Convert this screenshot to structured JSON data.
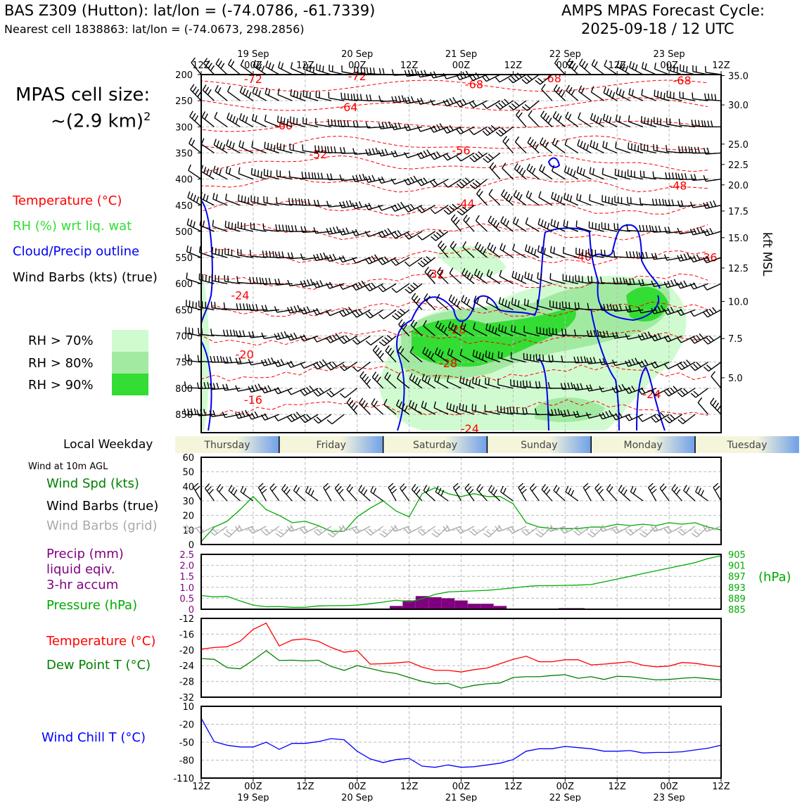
{
  "header": {
    "station": "BAS Z309 (Hutton): lat/lon = (-74.0786, -61.7339)",
    "nearest": "Nearest cell 1838863: lat/lon = (-74.0673, 298.2856)",
    "cycle_label": "AMPS MPAS Forecast Cycle:",
    "cycle_value": "2025-09-18 / 12 UTC"
  },
  "cell_size": {
    "label": "MPAS cell size:",
    "value": "~(2.9 km)",
    "exp": "2"
  },
  "legend": {
    "temperature": "Temperature (°C)",
    "rh": "RH (%) wrt liq. wat",
    "cloud": "Cloud/Precip outline",
    "barbs": "Wind Barbs (kts) (true)",
    "rh70": "RH > 70%",
    "rh80": "RH > 80%",
    "rh90": "RH > 90%"
  },
  "colors": {
    "temp": "#ff0000",
    "rh": "#33dd33",
    "cloud": "#0000ee",
    "precip": "#7f007f",
    "pressure": "#00aa00",
    "dew": "#008000",
    "chill": "#0000ff",
    "rh70": "#d0fbd0",
    "rh80": "#a2eaa2",
    "rh90": "#33dd33"
  },
  "panel_labels": {
    "local_weekday": "Local Weekday",
    "wind10m": "Wind at 10m AGL",
    "wind_spd": "Wind Spd (kts)",
    "wind_true": "Wind Barbs (true)",
    "wind_grid": "Wind Barbs (grid)",
    "precip1": "Precip (mm)",
    "precip2": "liquid eqiv.",
    "precip3": "3-hr accum",
    "pressure": "Pressure (hPa)",
    "hpa": "(hPa)",
    "temperature": "Temperature (°C)",
    "dewpoint": "Dew Point T (°C)",
    "windchill": "Wind Chill T (°C)",
    "kft": "kft MSL"
  },
  "weekdays": [
    "Thursday",
    "Friday",
    "Saturday",
    "Sunday",
    "Monday",
    "Tuesday"
  ],
  "chart_data": [
    {
      "type": "time-height",
      "title": "Upper-air forecast",
      "x_hours": [
        0,
        120
      ],
      "x_top_ticks": [
        "12Z",
        "00Z",
        "12Z",
        "00Z",
        "12Z",
        "00Z",
        "12Z",
        "00Z",
        "12Z",
        "00Z",
        "12Z"
      ],
      "x_dates": [
        "19 Sep",
        "20 Sep",
        "21 Sep",
        "22 Sep",
        "23 Sep"
      ],
      "y_pressure_ticks": [
        "200",
        "250",
        "300",
        "350",
        "400",
        "450",
        "500",
        "550",
        "600",
        "650",
        "700",
        "750",
        "800",
        "850"
      ],
      "kft_ticks": [
        "35.0",
        "30.0",
        "25.0",
        "22.5",
        "20.0",
        "17.5",
        "15.0",
        "12.5",
        "10.0",
        "7.5",
        "5.0"
      ],
      "kft_pressures": [
        202,
        258,
        333,
        372,
        411,
        461,
        512,
        570,
        634,
        705,
        780
      ],
      "temperature_labels": [
        {
          "text": "-72",
          "h": 12,
          "p": 208
        },
        {
          "text": "-72",
          "h": 36,
          "p": 203
        },
        {
          "text": "-68",
          "h": 63,
          "p": 218
        },
        {
          "text": "-68",
          "h": 81,
          "p": 207
        },
        {
          "text": "-68",
          "h": 111,
          "p": 211
        },
        {
          "text": "-64",
          "h": 34,
          "p": 262
        },
        {
          "text": "-60",
          "h": 19,
          "p": 297
        },
        {
          "text": "-52",
          "h": 27,
          "p": 352
        },
        {
          "text": "-56",
          "h": 60,
          "p": 345
        },
        {
          "text": "-48",
          "h": 110,
          "p": 412
        },
        {
          "text": "-44",
          "h": 61,
          "p": 446
        },
        {
          "text": "-40",
          "h": 88,
          "p": 548
        },
        {
          "text": "-36",
          "h": 117,
          "p": 549
        },
        {
          "text": "-32",
          "h": 54,
          "p": 581
        },
        {
          "text": "-24",
          "h": 9,
          "p": 622
        },
        {
          "text": "-28",
          "h": 59,
          "p": 687
        },
        {
          "text": "-28",
          "h": 57,
          "p": 752
        },
        {
          "text": "-20",
          "h": 10,
          "p": 735
        },
        {
          "text": "-16",
          "h": 12,
          "p": 822
        },
        {
          "text": "-24",
          "h": 104,
          "p": 811
        },
        {
          "text": "-24",
          "h": 62,
          "p": 877
        }
      ]
    },
    {
      "type": "line",
      "title": "Wind at 10m AGL",
      "ylabel": "Wind Spd (kts)",
      "ylim": [
        0,
        60
      ],
      "yticks": [
        "0",
        "10",
        "20",
        "30",
        "40",
        "50",
        "60"
      ],
      "x_hours": [
        0,
        3,
        6,
        9,
        12,
        15,
        18,
        21,
        24,
        27,
        30,
        33,
        36,
        39,
        42,
        45,
        48,
        51,
        54,
        57,
        60,
        63,
        66,
        69,
        72,
        75,
        78,
        81,
        84,
        87,
        90,
        93,
        96,
        99,
        102,
        105,
        108,
        111,
        114,
        117,
        120
      ],
      "series": [
        {
          "name": "Wind Spd",
          "values": [
            2,
            12,
            16,
            24,
            33,
            24,
            20,
            15,
            16,
            13,
            9,
            9,
            19,
            25,
            30,
            23,
            19,
            35,
            39,
            35,
            33,
            35,
            33,
            33,
            28,
            15,
            12,
            11,
            11,
            11,
            12,
            12,
            14,
            13,
            14,
            13,
            15,
            14,
            15,
            12,
            10
          ]
        }
      ]
    },
    {
      "type": "bar+line",
      "title": "Precip and pressure",
      "y_left_label": "Precip (mm)",
      "ylim_left": [
        0,
        2.5
      ],
      "yticks_left": [
        "0",
        "0.5",
        "1.0",
        "1.5",
        "2.0",
        "2.5"
      ],
      "ylim_right": [
        885,
        905
      ],
      "yticks_right": [
        "885",
        "889",
        "893",
        "897",
        "901",
        "905"
      ],
      "precip_hours": [
        45,
        48,
        51,
        54,
        57,
        60,
        63,
        66,
        69,
        84,
        87
      ],
      "precip_values": [
        0.15,
        0.4,
        0.6,
        0.55,
        0.5,
        0.4,
        0.25,
        0.25,
        0.15,
        0.05,
        0.05
      ],
      "series": [
        {
          "name": "Pressure (hPa)",
          "values": [
            890.0,
            889.5,
            889.7,
            888.0,
            886.5,
            885.9,
            886.0,
            885.7,
            885.7,
            886.2,
            886.3,
            886.3,
            886.5,
            887.0,
            887.6,
            888.3,
            887.7,
            888.8,
            890.4,
            891.3,
            891.5,
            891.7,
            891.9,
            892.3,
            892.8,
            893.3,
            893.6,
            893.6,
            893.7,
            893.8,
            894.0,
            895.0,
            896.0,
            897.0,
            898.0,
            899.0,
            900.0,
            901.0,
            902.0,
            903.5,
            904.5
          ]
        }
      ]
    },
    {
      "type": "line",
      "title": "Temperature and dew point",
      "ylim": [
        -32,
        -12
      ],
      "yticks": [
        "-32",
        "-28",
        "-24",
        "-20",
        "-16",
        "-12"
      ],
      "series": [
        {
          "name": "Temperature (°C)",
          "values": [
            -19.8,
            -19.4,
            -19.2,
            -17.8,
            -14.8,
            -13.2,
            -19.0,
            -17.5,
            -17.2,
            -17.8,
            -19.4,
            -20.6,
            -20.2,
            -23.6,
            -23.5,
            -23.3,
            -23.0,
            -24.4,
            -25.2,
            -25.2,
            -25.6,
            -25.0,
            -24.6,
            -23.5,
            -22.4,
            -21.6,
            -23.0,
            -23.0,
            -22.5,
            -22.5,
            -23.8,
            -23.6,
            -23.3,
            -23.0,
            -23.9,
            -24.3,
            -24.1,
            -23.2,
            -23.4,
            -23.9,
            -24.3
          ]
        },
        {
          "name": "Dew Point T (°C)",
          "values": [
            -22.2,
            -22.4,
            -24.5,
            -24.8,
            -22.6,
            -20.2,
            -22.7,
            -22.6,
            -22.8,
            -22.6,
            -24.2,
            -25.2,
            -24.0,
            -24.7,
            -25.5,
            -26.0,
            -27.0,
            -28.0,
            -28.6,
            -28.5,
            -29.7,
            -29.0,
            -28.6,
            -28.4,
            -27.0,
            -26.8,
            -26.8,
            -26.5,
            -26.3,
            -27.2,
            -26.8,
            -27.5,
            -26.7,
            -26.8,
            -27.2,
            -27.6,
            -27.5,
            -27.2,
            -27.0,
            -27.3,
            -27.6
          ]
        }
      ]
    },
    {
      "type": "line",
      "title": "Wind chill",
      "ylim": [
        -110,
        10
      ],
      "yticks": [
        "-110",
        "-80",
        "-50",
        "-20",
        "10"
      ],
      "series": [
        {
          "name": "Wind Chill T (°C)",
          "values": [
            -10,
            -49,
            -55,
            -58,
            -58,
            -50,
            -62,
            -52,
            -52,
            -49,
            -44,
            -46,
            -65,
            -78,
            -84,
            -79,
            -77,
            -90,
            -92,
            -88,
            -92,
            -91,
            -88,
            -85,
            -79,
            -65,
            -61,
            -61,
            -57,
            -59,
            -61,
            -65,
            -65,
            -64,
            -68,
            -67,
            -67,
            -66,
            -63,
            -60,
            -55
          ]
        }
      ]
    }
  ]
}
